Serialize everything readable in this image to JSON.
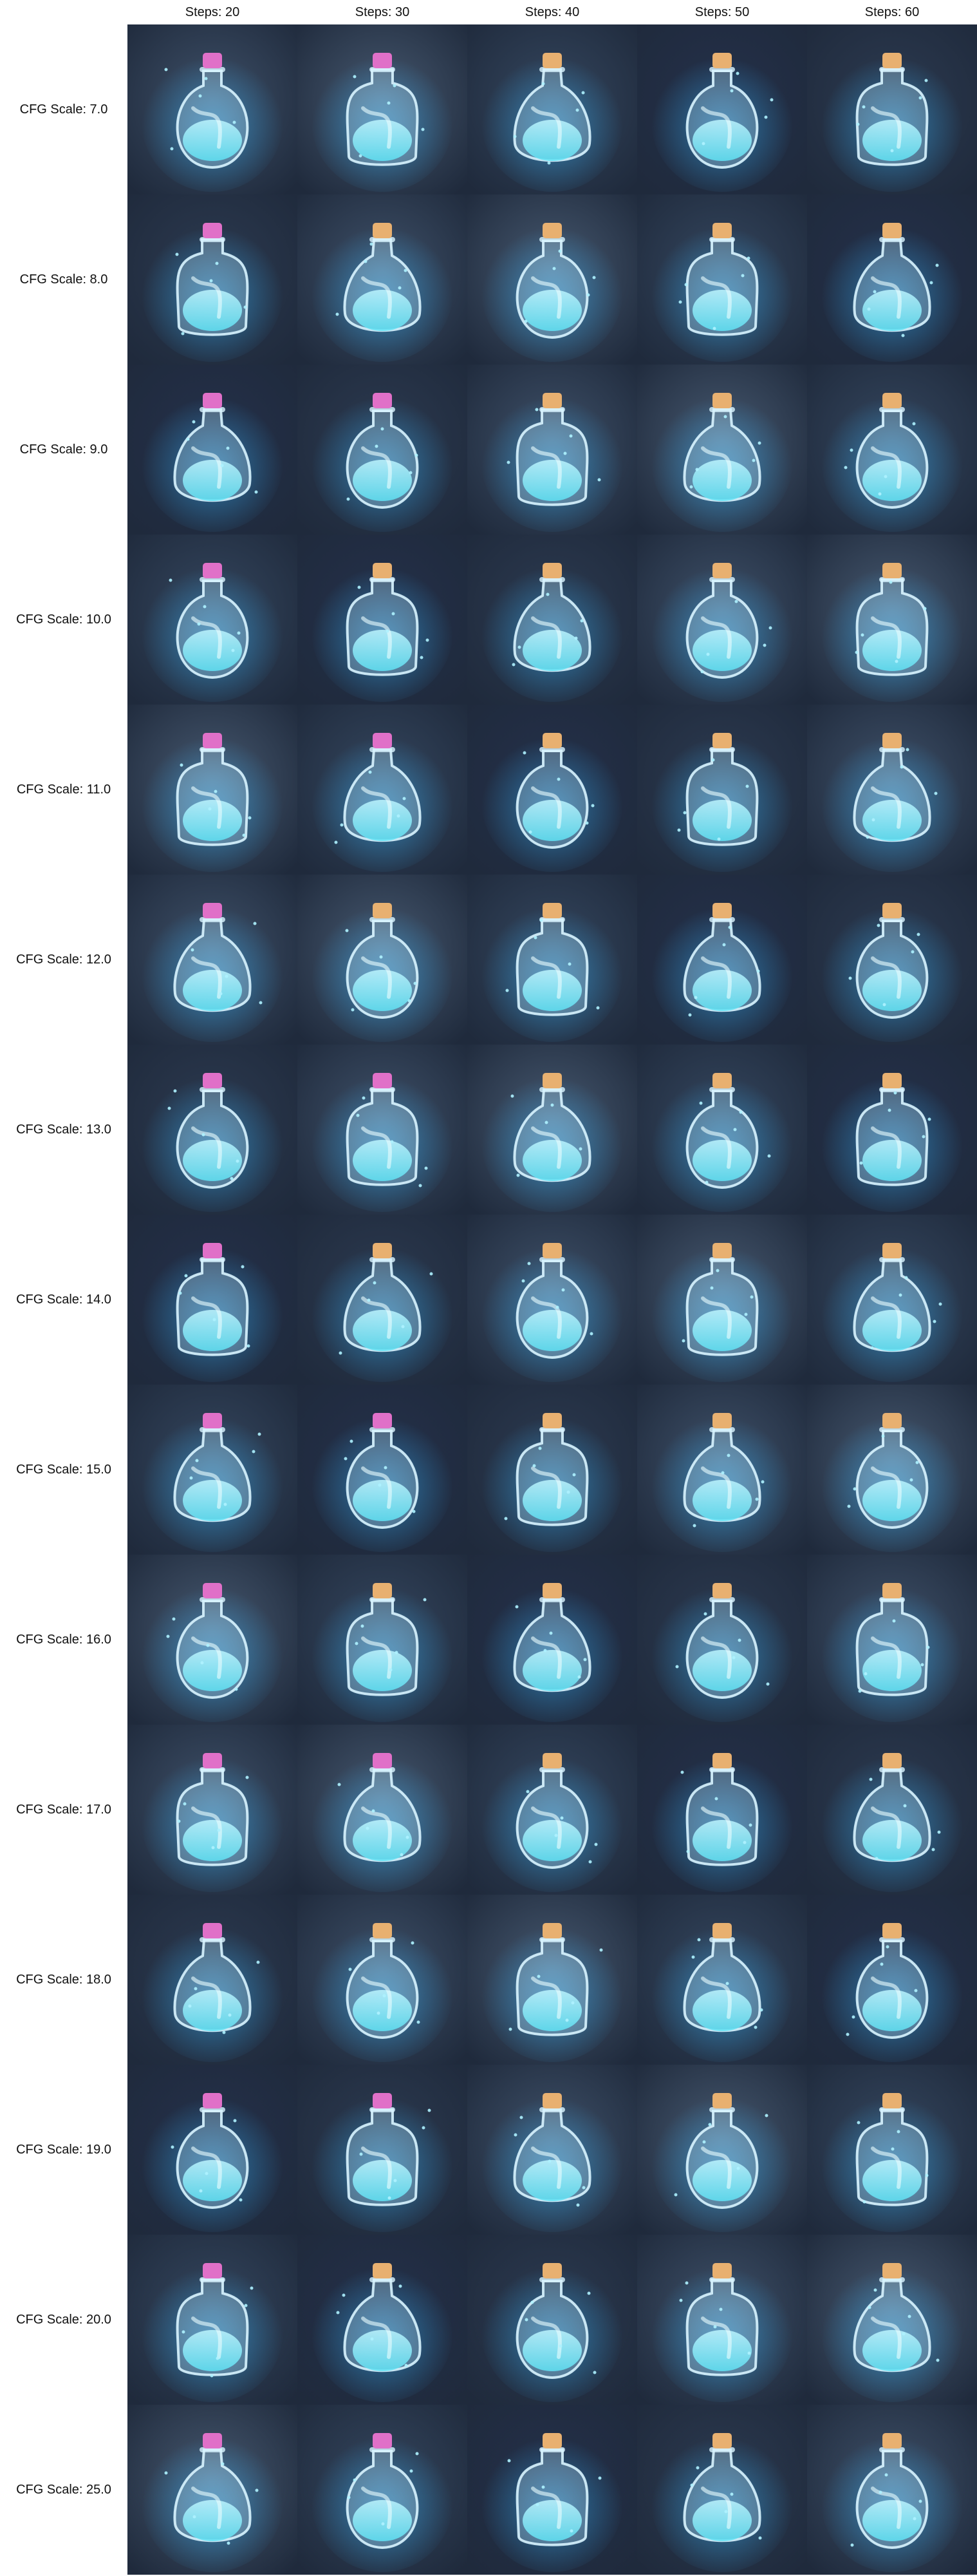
{
  "columns": [
    {
      "label": "Steps: 20"
    },
    {
      "label": "Steps: 30"
    },
    {
      "label": "Steps: 40"
    },
    {
      "label": "Steps: 50"
    },
    {
      "label": "Steps: 60"
    }
  ],
  "rows": [
    {
      "label": "CFG Scale: 7.0"
    },
    {
      "label": "CFG Scale: 8.0"
    },
    {
      "label": "CFG Scale: 9.0"
    },
    {
      "label": "CFG Scale: 10.0"
    },
    {
      "label": "CFG Scale: 11.0"
    },
    {
      "label": "CFG Scale: 12.0"
    },
    {
      "label": "CFG Scale: 13.0"
    },
    {
      "label": "CFG Scale: 14.0"
    },
    {
      "label": "CFG Scale: 15.0"
    },
    {
      "label": "CFG Scale: 16.0"
    },
    {
      "label": "CFG Scale: 17.0"
    },
    {
      "label": "CFG Scale: 18.0"
    },
    {
      "label": "CFG Scale: 19.0"
    },
    {
      "label": "CFG Scale: 20.0"
    },
    {
      "label": "CFG Scale: 25.0"
    }
  ],
  "image": {
    "subject": "potion-bottle-icon",
    "palette": {
      "background": [
        "#3e5068",
        "#34465e",
        "#2c3a50",
        "#46586f",
        "#24304a"
      ],
      "liquid": "#5fe3f5",
      "glass": "#d8f4ff",
      "glow": "#37b7ff",
      "cork": "#e8b070",
      "cap_pink": "#e070c8"
    }
  }
}
